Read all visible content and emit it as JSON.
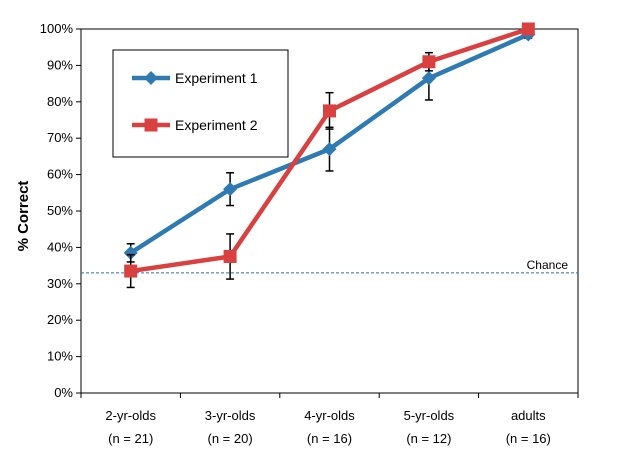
{
  "chart_data": {
    "type": "line",
    "title": "",
    "xlabel": "",
    "ylabel": "% Correct",
    "ylim": [
      0,
      100
    ],
    "y_ticks": [
      "0%",
      "10%",
      "20%",
      "30%",
      "40%",
      "50%",
      "60%",
      "70%",
      "80%",
      "90%",
      "100%"
    ],
    "categories": [
      "2-yr-olds",
      "3-yr-olds",
      "4-yr-olds",
      "5-yr-olds",
      "adults"
    ],
    "category_sublabels": [
      "(n = 21)",
      "(n = 20)",
      "(n = 16)",
      "(n = 12)",
      "(n = 16)"
    ],
    "series": [
      {
        "name": "Experiment 1",
        "color": "#2e7ab3",
        "marker": "diamond",
        "values": [
          38.5,
          56,
          67,
          86.5,
          98.5
        ],
        "error": [
          2.5,
          4.5,
          6,
          6,
          1
        ]
      },
      {
        "name": "Experiment 2",
        "color": "#d94040",
        "marker": "square",
        "values": [
          33.5,
          37.5,
          77.5,
          91,
          100
        ],
        "error": [
          4.5,
          6.2,
          5,
          2.5,
          0
        ]
      }
    ],
    "reference_line": {
      "label": "Chance",
      "value": 33,
      "color": "#2e6ca8",
      "style": "dashed"
    },
    "legend_position": "top-left",
    "grid": false
  }
}
